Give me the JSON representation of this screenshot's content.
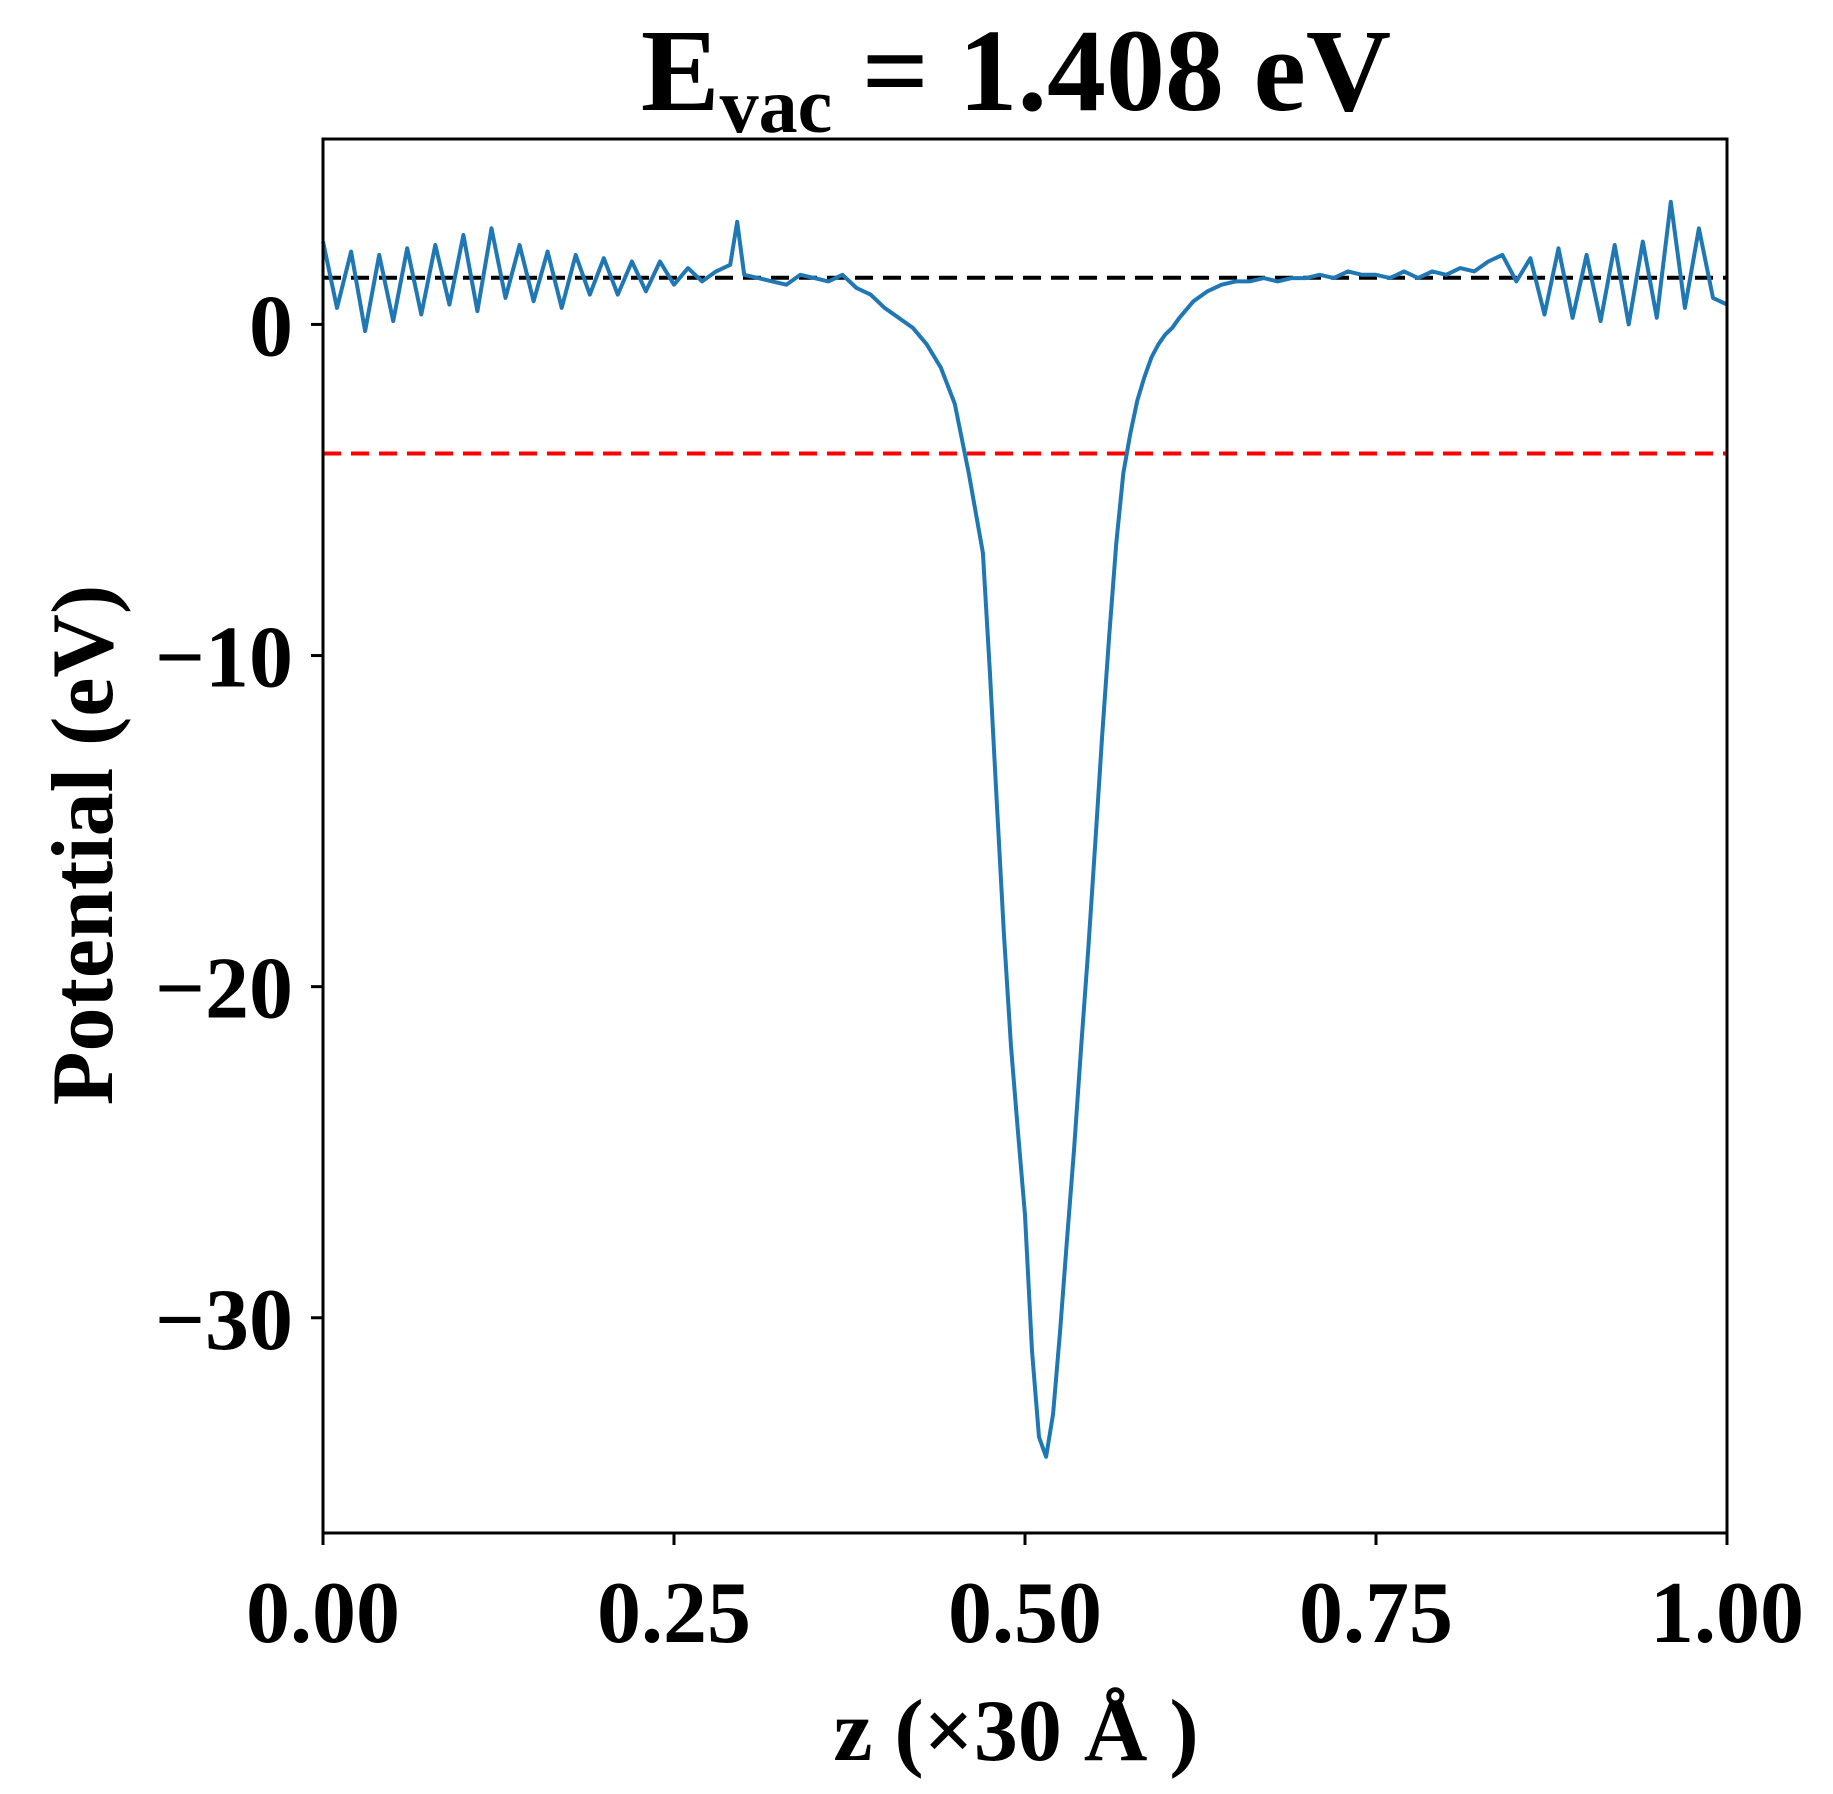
{
  "chart_data": {
    "type": "line",
    "title": {
      "main": "E",
      "subscript": "vac",
      "rest": " = 1.408 eV"
    },
    "xlabel": "z (×30 Å )",
    "ylabel": "Potential (eV)",
    "xlim": [
      0,
      1
    ],
    "ylim": [
      -36.5,
      5.6
    ],
    "xticks": [
      {
        "value": 0.0,
        "label": "0.00"
      },
      {
        "value": 0.25,
        "label": "0.25"
      },
      {
        "value": 0.5,
        "label": "0.50"
      },
      {
        "value": 0.75,
        "label": "0.75"
      },
      {
        "value": 1.0,
        "label": "1.00"
      }
    ],
    "yticks": [
      {
        "value": 0,
        "label": "0"
      },
      {
        "value": -10,
        "label": "−10"
      },
      {
        "value": -20,
        "label": "−20"
      },
      {
        "value": -30,
        "label": "−30"
      }
    ],
    "grid": false,
    "reference_lines": [
      {
        "y": 1.408,
        "color": "#000000",
        "style": "dashed"
      },
      {
        "y": -3.9,
        "color": "#ff0000",
        "style": "dashed"
      }
    ],
    "series": [
      {
        "color": "#1f77b4",
        "x": [
          0.0,
          0.01,
          0.02,
          0.03,
          0.04,
          0.05,
          0.06,
          0.07,
          0.08,
          0.09,
          0.1,
          0.11,
          0.12,
          0.13,
          0.14,
          0.15,
          0.16,
          0.17,
          0.18,
          0.19,
          0.2,
          0.21,
          0.22,
          0.23,
          0.24,
          0.25,
          0.26,
          0.27,
          0.28,
          0.29,
          0.295,
          0.3,
          0.31,
          0.32,
          0.33,
          0.34,
          0.35,
          0.36,
          0.37,
          0.38,
          0.39,
          0.4,
          0.41,
          0.42,
          0.43,
          0.44,
          0.45,
          0.46,
          0.47,
          0.475,
          0.48,
          0.485,
          0.49,
          0.495,
          0.5,
          0.505,
          0.51,
          0.515,
          0.52,
          0.525,
          0.53,
          0.535,
          0.54,
          0.545,
          0.55,
          0.555,
          0.56,
          0.565,
          0.57,
          0.575,
          0.58,
          0.585,
          0.59,
          0.595,
          0.6,
          0.605,
          0.61,
          0.62,
          0.63,
          0.64,
          0.65,
          0.66,
          0.67,
          0.68,
          0.69,
          0.7,
          0.71,
          0.72,
          0.73,
          0.74,
          0.75,
          0.76,
          0.77,
          0.78,
          0.79,
          0.8,
          0.81,
          0.82,
          0.83,
          0.84,
          0.85,
          0.86,
          0.87,
          0.88,
          0.89,
          0.9,
          0.91,
          0.92,
          0.93,
          0.94,
          0.95,
          0.96,
          0.97,
          0.98,
          0.99,
          1.0
        ],
        "y": [
          2.5,
          0.5,
          2.2,
          -0.2,
          2.1,
          0.1,
          2.3,
          0.3,
          2.4,
          0.6,
          2.7,
          0.4,
          2.9,
          0.8,
          2.4,
          0.7,
          2.2,
          0.5,
          2.1,
          0.9,
          2.0,
          0.9,
          1.9,
          1.0,
          1.9,
          1.2,
          1.7,
          1.3,
          1.6,
          1.8,
          3.1,
          1.5,
          1.4,
          1.3,
          1.2,
          1.5,
          1.4,
          1.3,
          1.5,
          1.1,
          0.9,
          0.5,
          0.2,
          -0.1,
          -0.6,
          -1.3,
          -2.4,
          -4.5,
          -6.9,
          -10.5,
          -14.5,
          -18.4,
          -21.8,
          -24.4,
          -26.9,
          -31.0,
          -33.6,
          -34.2,
          -32.9,
          -30.4,
          -27.6,
          -24.9,
          -21.8,
          -18.9,
          -15.7,
          -12.4,
          -9.4,
          -6.6,
          -4.5,
          -3.3,
          -2.3,
          -1.6,
          -1.0,
          -0.6,
          -0.3,
          -0.1,
          0.2,
          0.7,
          1.0,
          1.2,
          1.3,
          1.3,
          1.4,
          1.3,
          1.4,
          1.4,
          1.5,
          1.4,
          1.6,
          1.5,
          1.5,
          1.4,
          1.6,
          1.4,
          1.6,
          1.5,
          1.7,
          1.6,
          1.9,
          2.1,
          1.3,
          2.0,
          0.3,
          2.3,
          0.2,
          2.1,
          0.1,
          2.4,
          0.0,
          2.5,
          0.2,
          3.7,
          0.5,
          2.9,
          0.8,
          0.6
        ]
      }
    ]
  }
}
